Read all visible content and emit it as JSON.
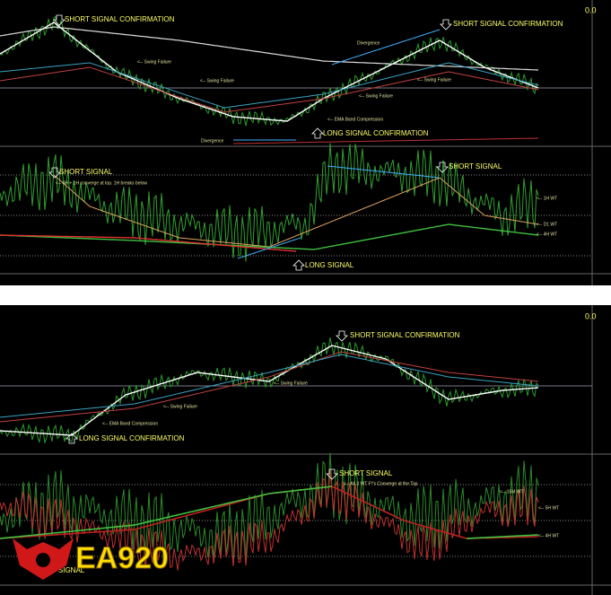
{
  "top": {
    "main": {
      "value_label": "0.0",
      "annotations": [
        "SHORT SIGNAL CONFIRMATION",
        "SHORT SIGNAL CONFIRMATION",
        "LONG SIGNAL CONFIRMATION",
        "Divergence",
        "Divergence",
        "<-- Swing Failure",
        "<-- Swing Failure",
        "<-- Swing Failure",
        "<-- Swing Failure",
        "<-- EMA Band Compression"
      ]
    },
    "oscillator": {
      "annotations": [
        "SHORT SIGNAL",
        "SHORT SIGNAL",
        "<-- 4H + 1H converge at top. 1H breaks below",
        "LONG SIGNAL",
        "<-- 1H WT",
        "<-- D1 WT",
        "<-- 4H WT"
      ]
    }
  },
  "bottom": {
    "main": {
      "value_label": "0.0",
      "annotations": [
        "SHORT SIGNAL CONFIRMATION",
        "LONG SIGNAL CONFIRMATION",
        "<-- Swing Failure",
        "<-- Swing Failure",
        "<-- EMA Band Compression"
      ]
    },
    "oscillator": {
      "annotations": [
        "SHORT SIGNAL",
        "<-- All 3 WT F*'s Converge at the Top",
        "<-- 15M WT",
        "<-- 5H WT",
        "<-- 4H WT",
        "LONG SIGNAL"
      ]
    }
  },
  "logo": "EA920"
}
